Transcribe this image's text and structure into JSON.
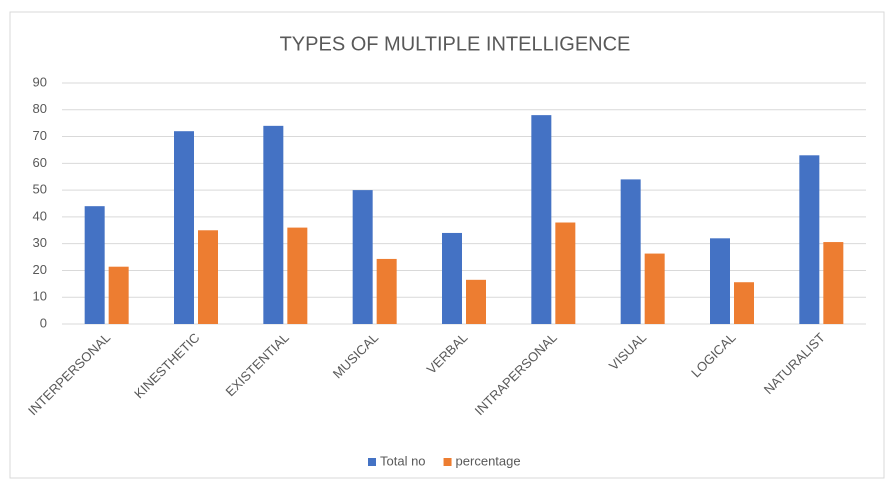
{
  "chart_data": {
    "type": "bar",
    "title": "TYPES OF MULTIPLE INTELLIGENCE",
    "categories": [
      "INTERPERSONAL",
      "KINESTHETIC",
      "EXISTENTIAL",
      "MUSICAL",
      "VERBAL",
      "INTRAPERSONAL",
      "VISUAL",
      "LOGICAL",
      "NATURALIST"
    ],
    "series": [
      {
        "name": "Total no",
        "color": "#4472c4",
        "values": [
          44,
          72,
          74,
          50,
          34,
          78,
          54,
          32,
          63
        ]
      },
      {
        "name": "percentage",
        "color": "#ed7d31",
        "values": [
          21.4,
          35,
          36,
          24.3,
          16.5,
          37.9,
          26.3,
          15.6,
          30.6
        ]
      }
    ],
    "ylim": [
      0,
      90
    ],
    "yticks": [
      0,
      10,
      20,
      30,
      40,
      50,
      60,
      70,
      80,
      90
    ],
    "grid": true,
    "legend": "bottom"
  }
}
